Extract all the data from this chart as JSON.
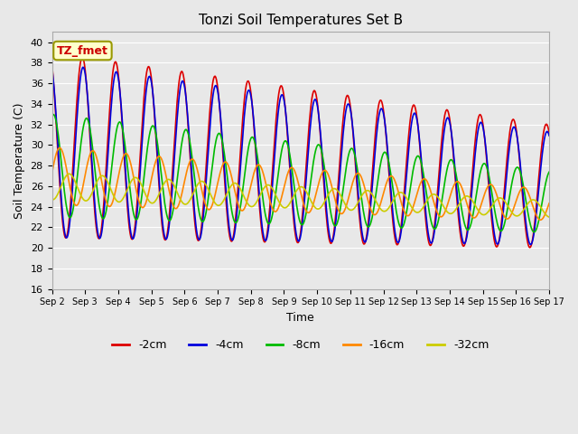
{
  "title": "Tonzi Soil Temperatures Set B",
  "xlabel": "Time",
  "ylabel": "Soil Temperature (C)",
  "ylim": [
    16,
    41
  ],
  "yticks": [
    16,
    18,
    20,
    22,
    24,
    26,
    28,
    30,
    32,
    34,
    36,
    38,
    40
  ],
  "legend_labels": [
    "-2cm",
    "-4cm",
    "-8cm",
    "-16cm",
    "-32cm"
  ],
  "legend_colors": [
    "#dd0000",
    "#0000dd",
    "#00bb00",
    "#ff8800",
    "#cccc00"
  ],
  "line_widths": [
    1.2,
    1.2,
    1.2,
    1.2,
    1.2
  ],
  "annotation_text": "TZ_fmet",
  "annotation_color": "#cc0000",
  "annotation_bg": "#ffffcc",
  "annotation_border": "#999900",
  "bg_color": "#e8e8e8",
  "plot_bg": "#e8e8e8",
  "grid_color": "#ffffff",
  "n_days": 15,
  "start_day": 2,
  "figsize": [
    6.4,
    4.8
  ],
  "dpi": 100
}
